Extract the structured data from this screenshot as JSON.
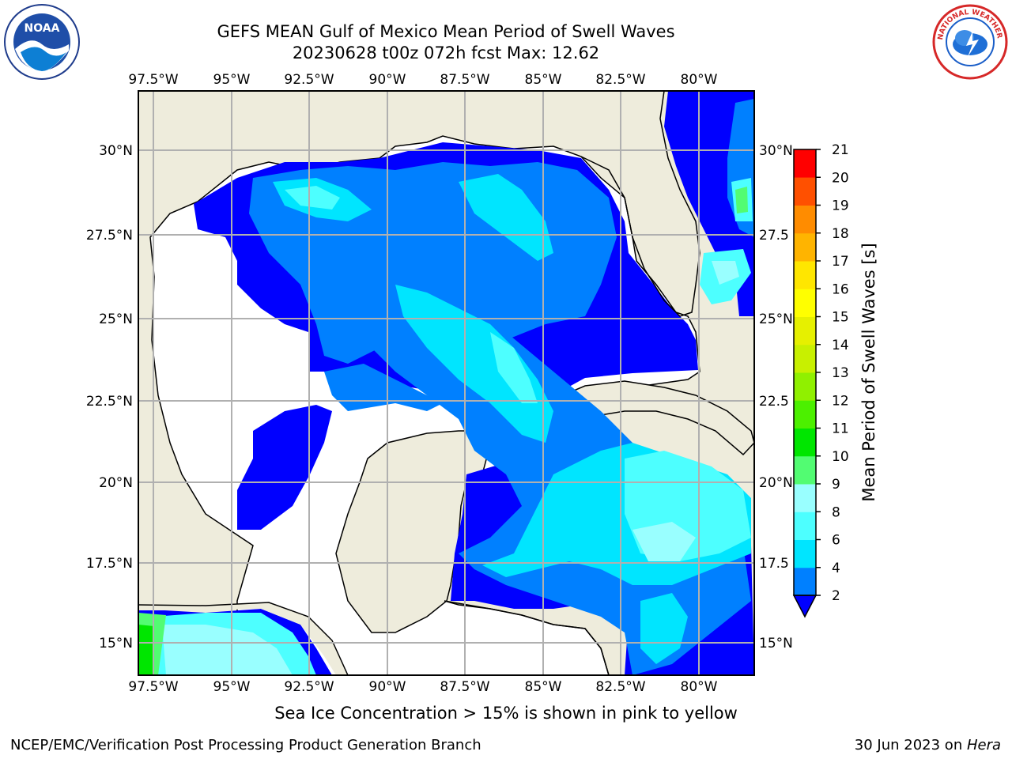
{
  "title": {
    "line1": "GEFS MEAN Gulf of Mexico Mean Period of Swell Waves",
    "line2": "20230628 t00z 072h fcst   Max: 12.62"
  },
  "map": {
    "lon_labels": [
      "97.5°W",
      "95°W",
      "92.5°W",
      "90°W",
      "87.5°W",
      "85°W",
      "82.5°W",
      "80°W"
    ],
    "lat_labels_left": [
      "30°N",
      "27.5°N",
      "25°N",
      "22.5°N",
      "20°N",
      "17.5°N",
      "15°N"
    ],
    "lat_labels_right": [
      "30°N",
      "27.5",
      "25°N",
      "22.5",
      "20°N",
      "17.5",
      "15°N"
    ],
    "land_color": "#eeecdc",
    "grid_color": "#b0b0b0"
  },
  "colorbar": {
    "title": "Mean Period of Swell Waves [s]",
    "levels": [
      "2",
      "4",
      "6",
      "8",
      "9",
      "10",
      "11",
      "12",
      "13",
      "14",
      "15",
      "16",
      "17",
      "18",
      "19",
      "20",
      "21"
    ],
    "colors": [
      "#0080ff",
      "#00e5ff",
      "#4dffff",
      "#99ffff",
      "#52fc72",
      "#00e600",
      "#4cf000",
      "#90f000",
      "#c8f000",
      "#e6f000",
      "#ffff00",
      "#ffe600",
      "#ffb400",
      "#ff8c00",
      "#ff5000",
      "#ff1e00",
      "#ff0000"
    ],
    "under_color": "#0000ff"
  },
  "caption": "Sea Ice Concentration > 15% is shown in pink to yellow",
  "footer": {
    "left": "NCEP/EMC/Verification Post Processing Product Generation Branch",
    "right_date": "30 Jun 2023 on ",
    "right_host": "Hera"
  },
  "logos": {
    "noaa_text": "NOAA",
    "nws_text": "NATIONAL WEATHER SERVICE"
  }
}
